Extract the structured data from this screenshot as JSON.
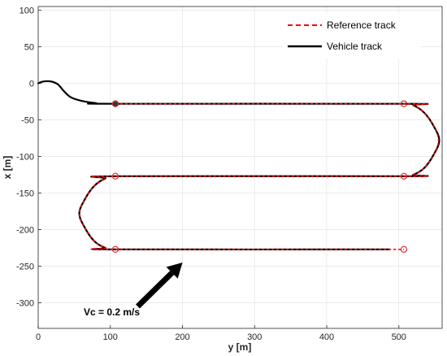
{
  "chart_data": {
    "type": "line",
    "title": "",
    "xlabel": "y [m]",
    "ylabel": "x [m]",
    "xlim": [
      0,
      560
    ],
    "ylim": [
      -335,
      105
    ],
    "xticks": [
      0,
      100,
      200,
      300,
      400,
      500
    ],
    "yticks": [
      100,
      50,
      0,
      -50,
      -100,
      -150,
      -200,
      -250,
      -300
    ],
    "grid": true,
    "legend_position": "top-right",
    "colors": {
      "reference": "#ff0000",
      "vehicle": "#000000",
      "markers": "#e03030"
    },
    "series": [
      {
        "name": "Reference track",
        "style": "dashed",
        "x": [
          107,
          507,
          520,
          535,
          548,
          555,
          548,
          535,
          520,
          507,
          107,
          93,
          78,
          65,
          57,
          65,
          78,
          93,
          107,
          507
        ],
        "y": [
          -28,
          -28,
          -30,
          -40,
          -58,
          -78,
          -98,
          -116,
          -125,
          -127,
          -127,
          -130,
          -140,
          -158,
          -178,
          -198,
          -216,
          -225,
          -227,
          -227
        ]
      },
      {
        "name": "Vehicle track",
        "style": "solid",
        "x": [
          0,
          5,
          12,
          20,
          28,
          35,
          45,
          60,
          80,
          107,
          507,
          520,
          535,
          548,
          556,
          548,
          535,
          520,
          507,
          107,
          93,
          78,
          65,
          57,
          65,
          78,
          93,
          107,
          487
        ],
        "y": [
          0,
          2,
          3,
          2,
          -2,
          -10,
          -19,
          -24,
          -27,
          -28,
          -28,
          -30,
          -40,
          -58,
          -78,
          -98,
          -116,
          -125,
          -127,
          -127,
          -130,
          -140,
          -158,
          -178,
          -198,
          -216,
          -225,
          -227,
          -227
        ]
      }
    ],
    "markers": {
      "x": [
        107,
        507,
        507,
        107,
        107,
        507
      ],
      "y": [
        -28,
        -28,
        -127,
        -127,
        -227,
        -227
      ]
    },
    "annotation": {
      "text": "Vc = 0.2 m/s",
      "arrow_from": [
        138,
        -305
      ],
      "arrow_to": [
        200,
        -245
      ]
    }
  }
}
